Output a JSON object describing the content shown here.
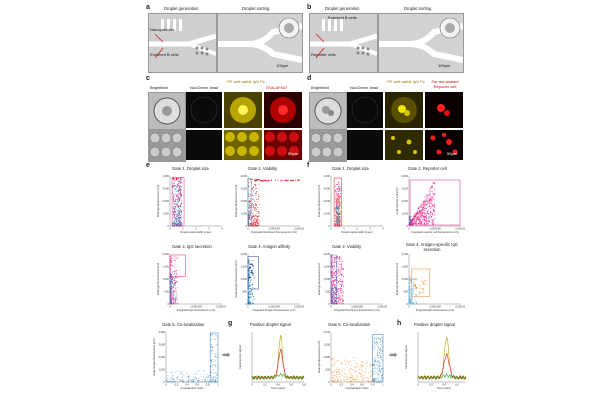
{
  "panels": {
    "a": {
      "letter": "a",
      "title_left": "Droplet generation",
      "title_right": "Droplet sorting",
      "labels": [
        "Nanoparticles",
        "Enriched B cells"
      ],
      "scale": "100µm"
    },
    "b": {
      "letter": "b",
      "title_left": "Droplet generation",
      "title_right": "Droplet sorting",
      "labels": [
        "Enriched B cells",
        "Reporter cells"
      ],
      "scale": "100µm"
    },
    "c": {
      "letter": "c",
      "headers": [
        "Brightfield",
        "NucGreen dead",
        "PE anti-rabbit IgG Fc",
        "OVA-AF647"
      ],
      "scale": "50µm"
    },
    "d": {
      "letter": "d",
      "headers": [
        "Brightfield",
        "NucGreen dead",
        "PE anti-rabbit IgG Fc",
        "Far red stained Reporter cell"
      ],
      "scale": "50µm"
    },
    "e": {
      "letter": "e"
    },
    "f": {
      "letter": "f"
    },
    "g": {
      "letter": "g",
      "title": "Positive droplet signal"
    },
    "h": {
      "letter": "h",
      "title": "Positive droplet signal"
    }
  },
  "gates_e": [
    {
      "title": "Gate 1. Droplet size",
      "xlabel": "Droplet signal width (msec)",
      "ylabel": "Peak IgG fluorescence (mV)"
    },
    {
      "title": "Gate 2. Viability",
      "xlabel": "Integrated NucGreen fluorescence (mV)",
      "ylabel": "Peak IgG fluorescence (mV)"
    },
    {
      "title": "Gate 3. IgG secretion",
      "xlabel": "Integrated IgG fluorescence (mV)",
      "ylabel": "Peak IgG fluorescence (mV)"
    },
    {
      "title": "Gate 4. Antigen affinity",
      "xlabel": "Integrated Antigen fluorescence (mV)",
      "ylabel": "Peak Antigen fluorescence (mV)"
    },
    {
      "title": "Gate 5. Co-localization",
      "xlabel": "Colocalization index",
      "ylabel": "Peak antigen fluorescence (mV)"
    }
  ],
  "gates_f": [
    {
      "title": "Gate 1. Droplet size",
      "xlabel": "Droplet signal width (msec)",
      "ylabel": "Peak IgG fluorescence (mV)"
    },
    {
      "title": "Gate 2. Reporter cell",
      "xlabel": "Integrated reporter cell fluorescence (mV)",
      "ylabel": "Peak reporter cell (mV)"
    },
    {
      "title": "Gate 3. Viability",
      "xlabel": "Integrated NucGreen fluorescence (mV)",
      "ylabel": "Peak IgG fluorescence (mV)"
    },
    {
      "title": "Gate 4. Antigen-specific IgG secretion",
      "xlabel": "Integrated IgG fluorescence (mV)",
      "ylabel": "Peak IgG fluorescence (mV)"
    },
    {
      "title": "Gate 5. Co-localization",
      "xlabel": "Colocalization index",
      "ylabel": "Peak IgG fluorescence (mV)"
    }
  ],
  "signal_g": {
    "xlabel": "Time (msec)",
    "ylabel": "Fluorescence signal"
  },
  "signal_h": {
    "xlabel": "Time (msec)",
    "ylabel": "Fluorescence signal"
  },
  "ticks": {
    "y4000": [
      "0",
      "1,000",
      "2,000",
      "3,000",
      "4,000"
    ],
    "y2000": [
      "0",
      "500",
      "1,000",
      "1,500",
      "2,000"
    ],
    "x_width": [
      "0",
      "1",
      "2",
      "3",
      "4"
    ],
    "x_big": [
      "0",
      "1,000,000",
      "2,000,000"
    ],
    "x_coloc": [
      "0",
      "0.2",
      "0.4",
      "0.6",
      "0.8",
      "1"
    ],
    "x_time": [
      "0",
      "0.2",
      "0.4",
      "0.6",
      "0.8"
    ]
  },
  "colors": {
    "red": "#d7191c",
    "magenta": "#e7298a",
    "blue": "#2c7bb6",
    "orange": "#f28e2b",
    "green": "#2ca02c",
    "olive": "#b8a000"
  }
}
